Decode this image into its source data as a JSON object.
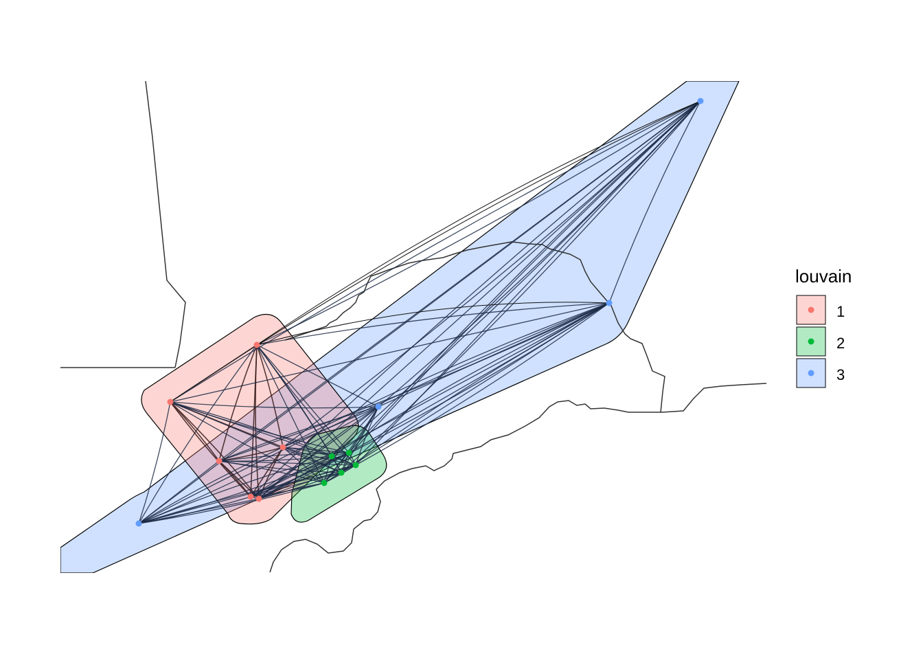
{
  "legend": {
    "title": "louvain",
    "items": [
      {
        "label": "1",
        "fill": "#F8766D"
      },
      {
        "label": "2",
        "fill": "#00BA38"
      },
      {
        "label": "3",
        "fill": "#619CFF"
      }
    ]
  },
  "colors": {
    "edge": "#1c2a45",
    "edge_cluster1": "#3a1c1c",
    "boundary": "#333333",
    "hull_stroke": "#000000"
  }
}
